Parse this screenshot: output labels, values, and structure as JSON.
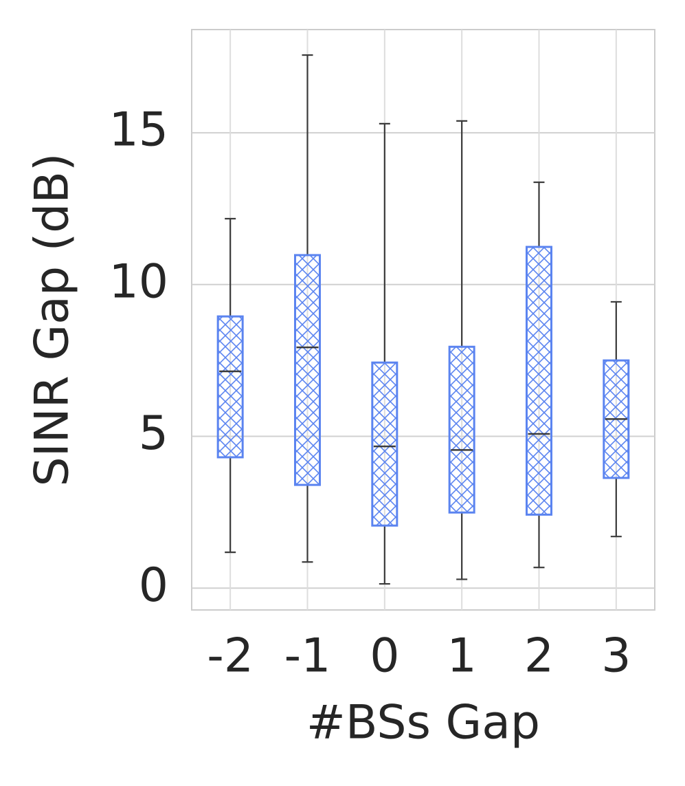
{
  "chart_data": {
    "type": "box",
    "x_label": "#BSs Gap",
    "y_label": "SINR Gap (dB)",
    "categories": [
      "-2",
      "-1",
      "0",
      "1",
      "2",
      "3"
    ],
    "series": [
      {
        "color": "#5b84f0",
        "whisker_color": "#3a3a3a",
        "boxes": [
          {
            "whislo": 1.18,
            "q1": 4.31,
            "med": 7.14,
            "q3": 8.95,
            "whishi": 12.17
          },
          {
            "whislo": 0.86,
            "q1": 3.4,
            "med": 7.93,
            "q3": 10.97,
            "whishi": 17.56
          },
          {
            "whislo": 0.14,
            "q1": 2.06,
            "med": 4.67,
            "q3": 7.43,
            "whishi": 15.3
          },
          {
            "whislo": 0.29,
            "q1": 2.49,
            "med": 4.55,
            "q3": 7.95,
            "whishi": 15.39
          },
          {
            "whislo": 0.68,
            "q1": 2.42,
            "med": 5.08,
            "q3": 11.24,
            "whishi": 13.37
          },
          {
            "whislo": 1.7,
            "q1": 3.63,
            "med": 5.57,
            "q3": 7.5,
            "whishi": 9.43
          }
        ]
      }
    ],
    "ylim": [
      -0.72,
      18.4
    ],
    "yticks": [
      0,
      5,
      10,
      15
    ],
    "grid": true,
    "hatch": "cross"
  }
}
